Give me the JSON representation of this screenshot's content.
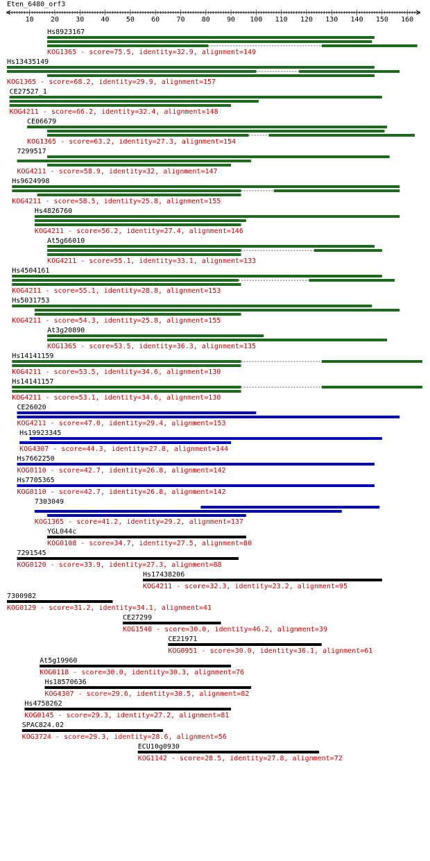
{
  "query": {
    "name": "Eten_6480_orf3",
    "length": 165
  },
  "axis": {
    "min": 1,
    "max": 165,
    "ticks": [
      10,
      20,
      30,
      40,
      50,
      60,
      70,
      80,
      90,
      100,
      110,
      120,
      130,
      140,
      150,
      160
    ]
  },
  "colors": {
    "green": "#1e6b1e",
    "blue": "#0000bb",
    "black": "#000000",
    "label_red": "#cc0000",
    "dotted": "#555555"
  },
  "hits": [
    {
      "name": "Hs8923167",
      "kog": "KOG1365",
      "score": "75.5",
      "identity": "32.9",
      "alignment": "149",
      "color": "green",
      "bars": [
        [
          [
            17,
            147
          ]
        ],
        [
          [
            17,
            146
          ]
        ],
        [
          [
            17,
            81
          ],
          [
            126,
            164
          ]
        ]
      ]
    },
    {
      "name": "Hs13435149",
      "kog": "KOG1365",
      "score": "68.2",
      "identity": "29.9",
      "alignment": "157",
      "color": "green",
      "bars": [
        [
          [
            1,
            147
          ]
        ],
        [
          [
            1,
            100
          ],
          [
            117,
            157
          ]
        ],
        [
          [
            17,
            147
          ]
        ]
      ]
    },
    {
      "name": "CE27527_1",
      "kog": "KOG4211",
      "score": "66.2",
      "identity": "32.4",
      "alignment": "148",
      "color": "green",
      "bars": [
        [
          [
            2,
            150
          ]
        ],
        [
          [
            2,
            101
          ]
        ],
        [
          [
            2,
            90
          ]
        ]
      ]
    },
    {
      "name": "CE06679",
      "kog": "KOG1365",
      "score": "63.2",
      "identity": "27.3",
      "alignment": "154",
      "color": "green",
      "bars": [
        [
          [
            9,
            152
          ]
        ],
        [
          [
            17,
            151
          ]
        ],
        [
          [
            17,
            97
          ],
          [
            105,
            163
          ]
        ]
      ]
    },
    {
      "name": "7299517",
      "kog": "KOG4211",
      "score": "58.9",
      "identity": "32",
      "alignment": "147",
      "color": "green",
      "bars": [
        [
          [
            17,
            153
          ]
        ],
        [
          [
            5,
            98
          ]
        ],
        [
          [
            17,
            90
          ]
        ]
      ]
    },
    {
      "name": "Hs9624998",
      "kog": "KOG4211",
      "score": "58.5",
      "identity": "25.8",
      "alignment": "155",
      "color": "green",
      "bars": [
        [
          [
            3,
            157
          ]
        ],
        [
          [
            3,
            94
          ],
          [
            107,
            157
          ]
        ],
        [
          [
            13,
            94
          ]
        ]
      ]
    },
    {
      "name": "Hs4826760",
      "kog": "KOG4211",
      "score": "56.2",
      "identity": "27.4",
      "alignment": "146",
      "color": "green",
      "bars": [
        [
          [
            12,
            157
          ]
        ],
        [
          [
            12,
            96
          ]
        ],
        [
          [
            12,
            94
          ]
        ]
      ]
    },
    {
      "name": "At5g66010",
      "kog": "KOG4211",
      "score": "55.1",
      "identity": "33.1",
      "alignment": "133",
      "color": "green",
      "bars": [
        [
          [
            17,
            147
          ]
        ],
        [
          [
            17,
            94
          ],
          [
            123,
            150
          ]
        ],
        [
          [
            17,
            94
          ]
        ]
      ]
    },
    {
      "name": "Hs4504161",
      "kog": "KOG4211",
      "score": "55.1",
      "identity": "28.8",
      "alignment": "153",
      "color": "green",
      "bars": [
        [
          [
            3,
            150
          ]
        ],
        [
          [
            3,
            93
          ],
          [
            121,
            155
          ]
        ],
        [
          [
            3,
            94
          ]
        ]
      ]
    },
    {
      "name": "Hs5031753",
      "kog": "KOG4211",
      "score": "54.3",
      "identity": "25.8",
      "alignment": "155",
      "color": "green",
      "bars": [
        [
          [
            3,
            146
          ]
        ],
        [
          [
            12,
            157
          ]
        ],
        [
          [
            12,
            94
          ]
        ]
      ]
    },
    {
      "name": "At3g20890",
      "kog": "KOG1365",
      "score": "53.5",
      "identity": "36.3",
      "alignment": "135",
      "color": "green",
      "bars": [
        [
          [
            17,
            103
          ]
        ],
        [
          [
            17,
            152
          ]
        ]
      ]
    },
    {
      "name": "Hs14141159",
      "kog": "KOG4211",
      "score": "53.5",
      "identity": "34.6",
      "alignment": "130",
      "color": "green",
      "bars": [
        [
          [
            3,
            94
          ],
          [
            126,
            166
          ]
        ],
        [
          [
            3,
            94
          ]
        ]
      ]
    },
    {
      "name": "Hs14141157",
      "kog": "KOG4211",
      "score": "53.1",
      "identity": "34.6",
      "alignment": "130",
      "color": "green",
      "bars": [
        [
          [
            3,
            94
          ],
          [
            126,
            166
          ]
        ],
        [
          [
            3,
            94
          ]
        ]
      ]
    },
    {
      "name": "CE26020",
      "kog": "KOG4211",
      "score": "47.0",
      "identity": "29.4",
      "alignment": "153",
      "color": "blue",
      "bars": [
        [
          [
            5,
            100
          ]
        ],
        [
          [
            5,
            157
          ]
        ]
      ]
    },
    {
      "name": "Hs19923345",
      "kog": "KOG4307",
      "score": "44.3",
      "identity": "27.8",
      "alignment": "144",
      "color": "blue",
      "bars": [
        [
          [
            10,
            150
          ]
        ],
        [
          [
            6,
            90
          ]
        ]
      ]
    },
    {
      "name": "Hs7662250",
      "kog": "KOG0110",
      "score": "42.7",
      "identity": "26.8",
      "alignment": "142",
      "color": "blue",
      "bars": [
        [
          [
            5,
            147
          ]
        ]
      ]
    },
    {
      "name": "Hs7705365",
      "kog": "KOG0110",
      "score": "42.7",
      "identity": "26.8",
      "alignment": "142",
      "color": "blue",
      "bars": [
        [
          [
            5,
            147
          ]
        ]
      ]
    },
    {
      "name": "7303049",
      "kog": "KOG1365",
      "score": "41.2",
      "identity": "29.2",
      "alignment": "137",
      "color": "blue",
      "bars": [
        [
          [
            78,
            149
          ]
        ],
        [
          [
            12,
            134
          ]
        ],
        [
          [
            17,
            96
          ]
        ]
      ]
    },
    {
      "name": "YGL044c",
      "kog": "KOG0108",
      "score": "34.7",
      "identity": "27.5",
      "alignment": "80",
      "color": "black",
      "bars": [
        [
          [
            17,
            96
          ]
        ]
      ]
    },
    {
      "name": "7291545",
      "kog": "KOG0120",
      "score": "33.9",
      "identity": "27.3",
      "alignment": "88",
      "color": "black",
      "bars": [
        [
          [
            5,
            93
          ]
        ]
      ]
    },
    {
      "name": "Hs17438206",
      "kog": "KOG4211",
      "score": "32.3",
      "identity": "23.2",
      "alignment": "95",
      "color": "black",
      "bars": [
        [
          [
            55,
            150
          ]
        ]
      ]
    },
    {
      "name": "7300982",
      "kog": "KOG0129",
      "score": "31.2",
      "identity": "34.1",
      "alignment": "41",
      "color": "black",
      "bars": [
        [
          [
            1,
            43
          ]
        ]
      ]
    },
    {
      "name": "CE27299",
      "kog": "KOG1548",
      "score": "30.0",
      "identity": "46.2",
      "alignment": "39",
      "color": "black",
      "bars": [
        [
          [
            47,
            86
          ]
        ]
      ]
    },
    {
      "name": "CE21971",
      "kog": "KOG0951",
      "score": "30.0",
      "identity": "36.1",
      "alignment": "61",
      "color": "black",
      "bars": [
        [
          [
            65,
            126
          ]
        ]
      ]
    },
    {
      "name": "At5g19960",
      "kog": "KOG0118",
      "score": "30.0",
      "identity": "30.3",
      "alignment": "76",
      "color": "black",
      "bars": [
        [
          [
            14,
            90
          ]
        ]
      ]
    },
    {
      "name": "Hs18570636",
      "kog": "KOG4307",
      "score": "29.6",
      "identity": "30.5",
      "alignment": "82",
      "color": "black",
      "bars": [
        [
          [
            16,
            98
          ]
        ]
      ]
    },
    {
      "name": "Hs4758262",
      "kog": "KOG0145",
      "score": "29.3",
      "identity": "27.2",
      "alignment": "81",
      "color": "black",
      "bars": [
        [
          [
            8,
            90
          ]
        ]
      ]
    },
    {
      "name": "SPAC824.02",
      "kog": "KOG3724",
      "score": "29.3",
      "identity": "28.6",
      "alignment": "56",
      "color": "black",
      "bars": [
        [
          [
            7,
            63
          ]
        ]
      ]
    },
    {
      "name": "ECU10g0930",
      "kog": "KOG1142",
      "score": "28.5",
      "identity": "27.8",
      "alignment": "72",
      "color": "black",
      "bars": [
        [
          [
            53,
            125
          ]
        ]
      ]
    }
  ]
}
